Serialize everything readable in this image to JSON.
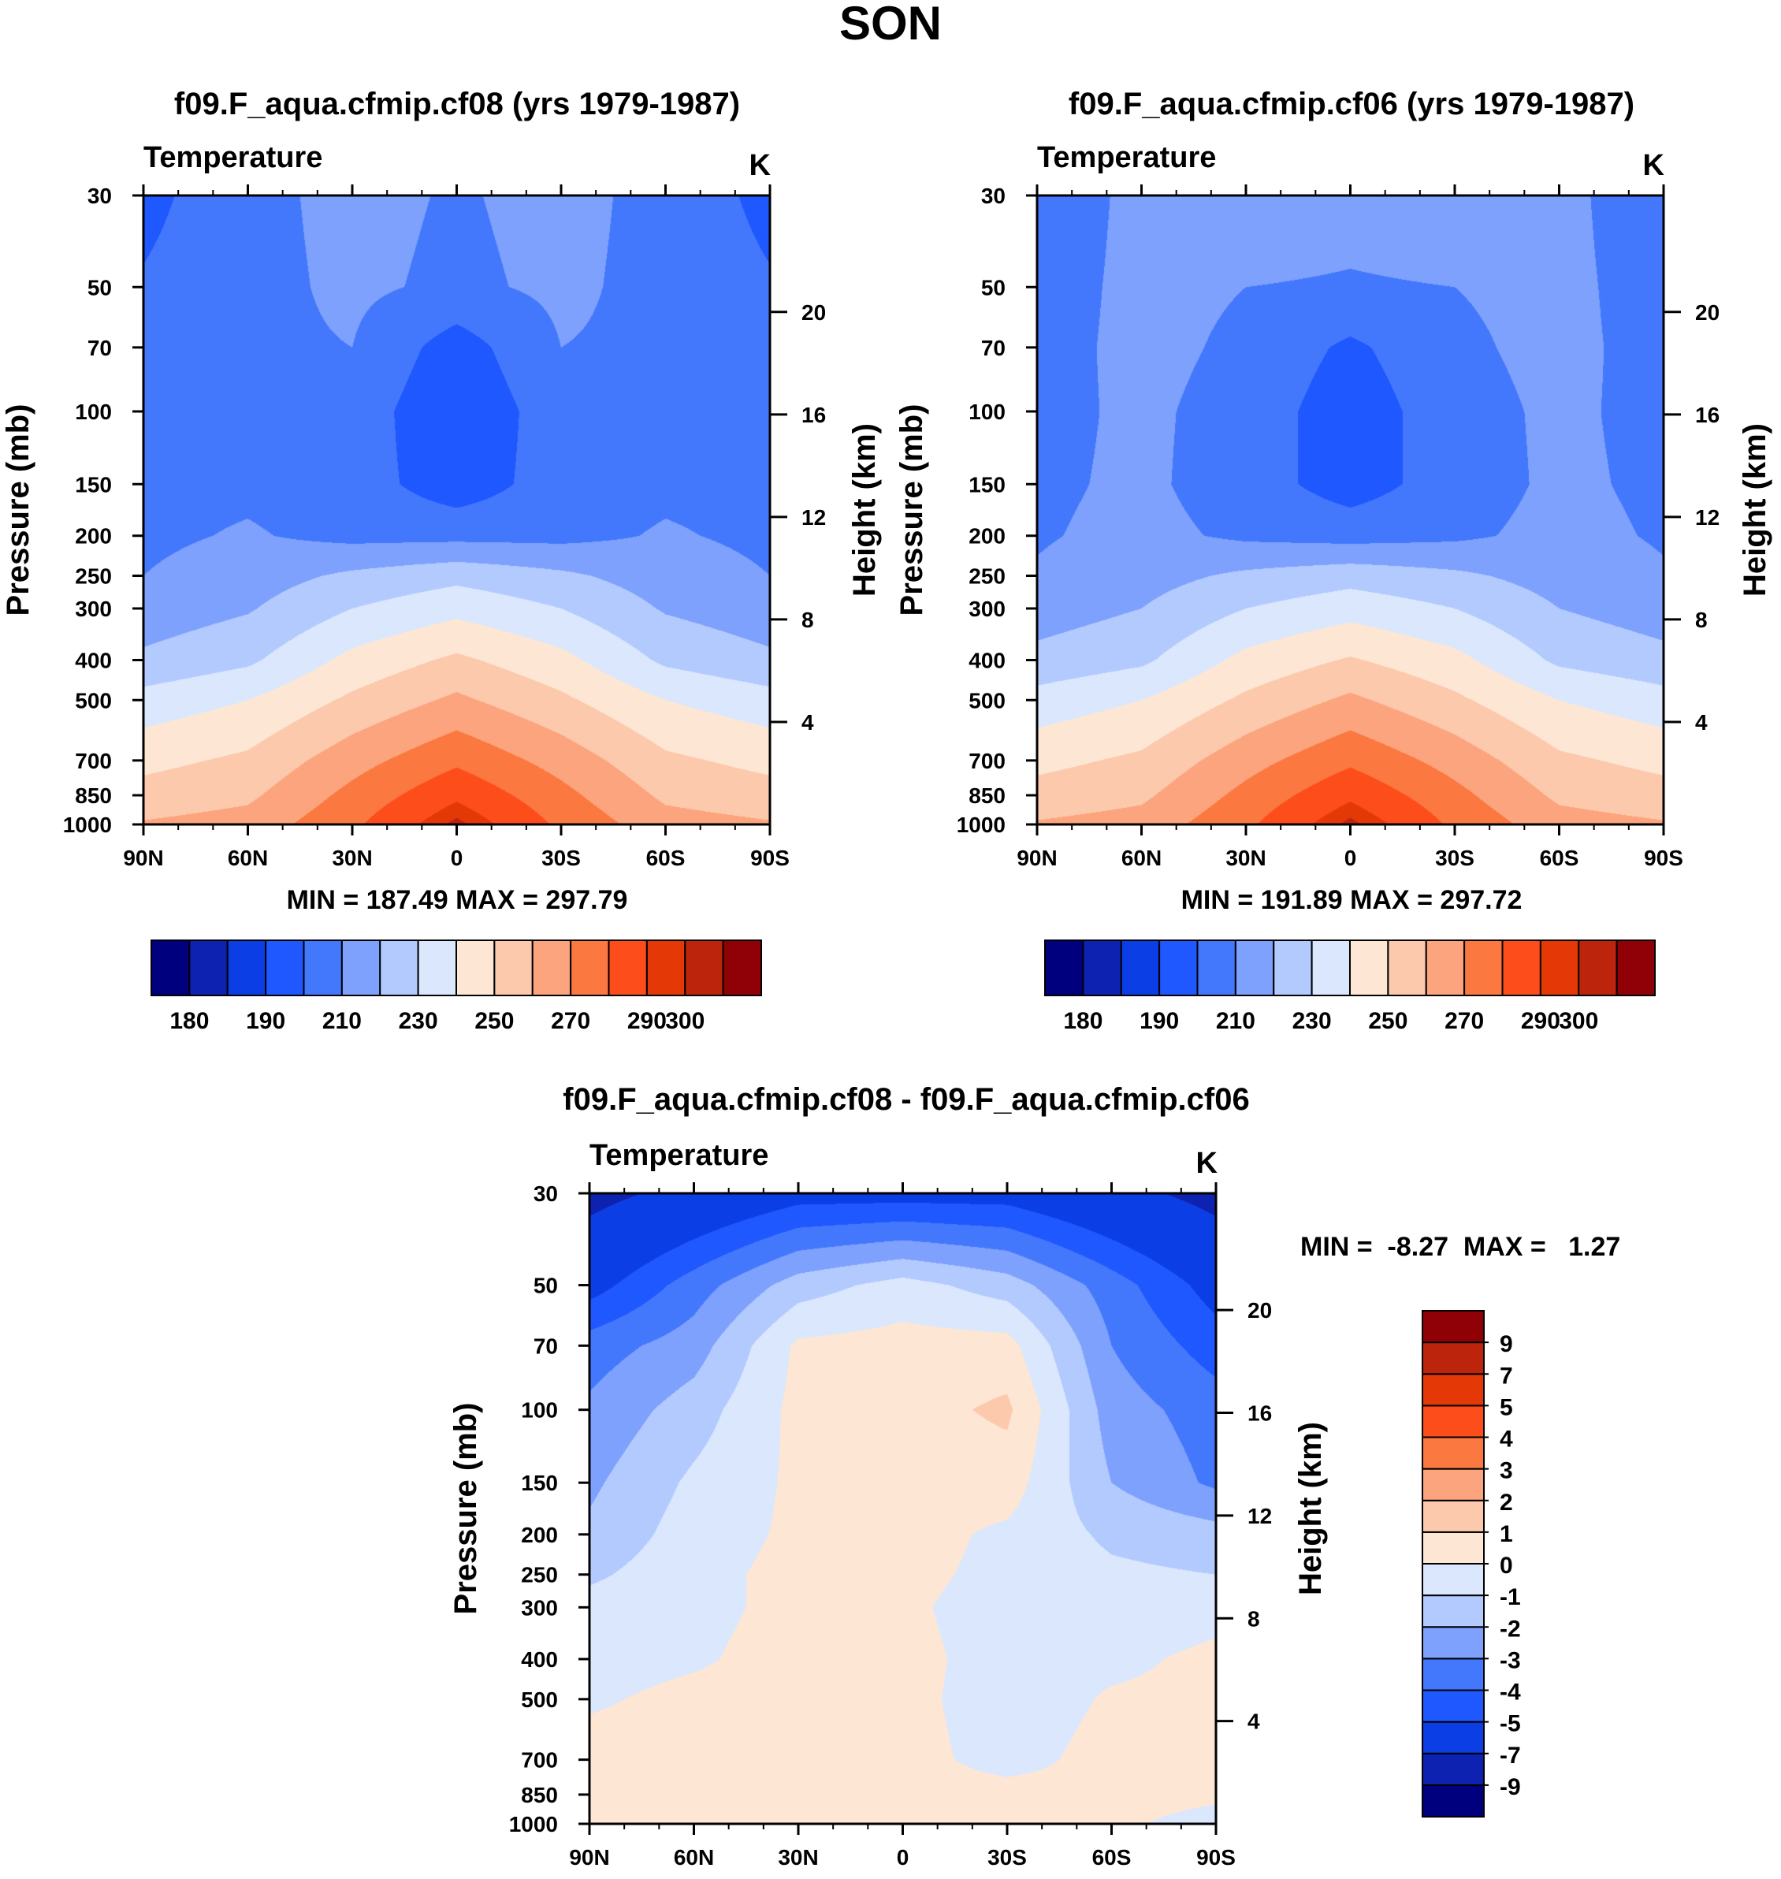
{
  "page": {
    "title": "SON",
    "colors": {
      "absolute": [
        "#00007f",
        "#0d22b0",
        "#0c3ee6",
        "#1f58ff",
        "#4478fc",
        "#7da1fc",
        "#b3caff",
        "#dae7fd",
        "#fde7d4",
        "#fcc9ac",
        "#fca47d",
        "#fb7840",
        "#fd4d1b",
        "#e43807",
        "#bc240c",
        "#8f0106"
      ],
      "difference": [
        "#00007f",
        "#0d22b0",
        "#0c3ee6",
        "#1f58ff",
        "#4478fc",
        "#7da1fc",
        "#b3caff",
        "#dae7fd",
        "#fde7d4",
        "#fcc9ac",
        "#fca47d",
        "#fb7840",
        "#fd4d1b",
        "#e43807",
        "#bc240c",
        "#8f0106"
      ]
    }
  },
  "chart_data": [
    {
      "type": "contour",
      "title": "f09.F_aqua.cfmip.cf08 (yrs 1979-1987)",
      "variable": "Temperature",
      "units": "K",
      "xlabel": "",
      "ylabel": "Pressure (mb)",
      "y2label": "Height (km)",
      "x_ticks": [
        "90N",
        "60N",
        "30N",
        "0",
        "30S",
        "60S",
        "90S"
      ],
      "x_range": [
        90,
        -90
      ],
      "y_ticks": [
        30,
        50,
        70,
        100,
        150,
        200,
        250,
        300,
        400,
        500,
        700,
        850,
        1000
      ],
      "y_range": [
        30,
        1000
      ],
      "height_ticks": [
        20,
        16,
        12,
        8,
        4
      ],
      "stats": "MIN = 187.49  MAX = 297.79",
      "min": 187.49,
      "max": 297.79,
      "colorbar_ticks": [
        180,
        190,
        210,
        230,
        250,
        270,
        290,
        300
      ],
      "levels": [
        180,
        185,
        190,
        200,
        210,
        220,
        230,
        240,
        250,
        260,
        270,
        280,
        290,
        295,
        300
      ],
      "field": {
        "x_points": [
          90,
          60,
          30,
          0,
          -30,
          -60,
          -90
        ],
        "levels_mb": [
          30,
          50,
          70,
          100,
          150,
          200,
          250,
          300,
          400,
          500,
          700,
          850,
          1000
        ],
        "values": [
          [
            197,
            207,
            213,
            209,
            213,
            207,
            197
          ],
          [
            201,
            207,
            212,
            208,
            212,
            207,
            201
          ],
          [
            204,
            208,
            210,
            195,
            210,
            208,
            204
          ],
          [
            205,
            208,
            206,
            191,
            206,
            208,
            205
          ],
          [
            207,
            208,
            205,
            194,
            205,
            208,
            207
          ],
          [
            208,
            211,
            207,
            207,
            207,
            211,
            208
          ],
          [
            210,
            215,
            222,
            227,
            222,
            215,
            210
          ],
          [
            214,
            219,
            230,
            237,
            230,
            219,
            214
          ],
          [
            222,
            228,
            243,
            252,
            243,
            228,
            222
          ],
          [
            234,
            240,
            252,
            262,
            252,
            240,
            234
          ],
          [
            247,
            252,
            266,
            278,
            266,
            252,
            247
          ],
          [
            254,
            258,
            273,
            288,
            273,
            258,
            254
          ],
          [
            261,
            264,
            278,
            297,
            278,
            264,
            261
          ]
        ]
      }
    },
    {
      "type": "contour",
      "title": "f09.F_aqua.cfmip.cf06 (yrs 1979-1987)",
      "variable": "Temperature",
      "units": "K",
      "xlabel": "",
      "ylabel": "Pressure (mb)",
      "y2label": "Height (km)",
      "x_ticks": [
        "90N",
        "60N",
        "30N",
        "0",
        "30S",
        "60S",
        "90S"
      ],
      "x_range": [
        90,
        -90
      ],
      "y_ticks": [
        30,
        50,
        70,
        100,
        150,
        200,
        250,
        300,
        400,
        500,
        700,
        850,
        1000
      ],
      "y_range": [
        30,
        1000
      ],
      "height_ticks": [
        20,
        16,
        12,
        8,
        4
      ],
      "stats": "MIN = 191.89  MAX = 297.72",
      "min": 191.89,
      "max": 297.72,
      "colorbar_ticks": [
        180,
        190,
        210,
        230,
        250,
        270,
        290,
        300
      ],
      "levels": [
        180,
        185,
        190,
        200,
        210,
        220,
        230,
        240,
        250,
        260,
        270,
        280,
        290,
        295,
        300
      ],
      "field": {
        "x_points": [
          90,
          60,
          30,
          0,
          -30,
          -60,
          -90
        ],
        "levels_mb": [
          30,
          50,
          70,
          100,
          150,
          200,
          250,
          300,
          400,
          500,
          700,
          850,
          1000
        ],
        "values": [
          [
            203,
            213,
            217,
            214,
            217,
            213,
            203
          ],
          [
            205,
            213,
            210,
            209,
            210,
            213,
            205
          ],
          [
            206,
            213,
            208,
            198,
            208,
            213,
            206
          ],
          [
            207,
            212,
            206,
            194,
            206,
            212,
            207
          ],
          [
            208,
            212,
            205,
            195,
            205,
            212,
            208
          ],
          [
            209,
            213,
            208,
            206,
            208,
            213,
            209
          ],
          [
            211,
            216,
            222,
            226,
            222,
            216,
            211
          ],
          [
            215,
            220,
            230,
            236,
            230,
            220,
            215
          ],
          [
            223,
            228,
            243,
            251,
            243,
            228,
            223
          ],
          [
            234,
            240,
            252,
            262,
            252,
            240,
            234
          ],
          [
            247,
            252,
            266,
            278,
            266,
            252,
            247
          ],
          [
            254,
            258,
            273,
            288,
            273,
            258,
            254
          ],
          [
            261,
            264,
            278,
            297,
            278,
            264,
            261
          ]
        ]
      }
    },
    {
      "type": "contour",
      "title": "f09.F_aqua.cfmip.cf08 - f09.F_aqua.cfmip.cf06",
      "variable": "Temperature",
      "units": "K",
      "xlabel": "",
      "ylabel": "Pressure (mb)",
      "y2label": "Height (km)",
      "x_ticks": [
        "90N",
        "60N",
        "30N",
        "0",
        "30S",
        "60S",
        "90S"
      ],
      "x_range": [
        90,
        -90
      ],
      "y_ticks": [
        30,
        50,
        70,
        100,
        150,
        200,
        250,
        300,
        400,
        500,
        700,
        850,
        1000
      ],
      "y_range": [
        30,
        1000
      ],
      "height_ticks": [
        20,
        16,
        12,
        8,
        4
      ],
      "stats": "MIN =  -8.27  MAX =   1.27",
      "min": -8.27,
      "max": 1.27,
      "colorbar_ticks": [
        9,
        7,
        5,
        4,
        3,
        2,
        1,
        0,
        -1,
        -2,
        -3,
        -4,
        -5,
        -7,
        -9
      ],
      "levels": [
        -9,
        -7,
        -5,
        -4,
        -3,
        -2,
        -1,
        0,
        1,
        2,
        3,
        4,
        5,
        7,
        9
      ],
      "field": {
        "x_points": [
          90,
          60,
          30,
          0,
          -30,
          -60,
          -90
        ],
        "levels_mb": [
          30,
          50,
          70,
          100,
          150,
          200,
          250,
          300,
          400,
          500,
          700,
          850,
          1000
        ],
        "values": [
          [
            -7.5,
            -6.5,
            -5.5,
            -5.5,
            -5.5,
            -6.5,
            -7.5
          ],
          [
            -5.5,
            -3.5,
            -1.5,
            -0.6,
            -1.5,
            -3.5,
            -5.5
          ],
          [
            -3.5,
            -2.5,
            0.2,
            0.4,
            0.4,
            -3.0,
            -4.5
          ],
          [
            -2.8,
            -1.5,
            0.3,
            0.6,
            1.2,
            -2.5,
            -3.5
          ],
          [
            -2.2,
            -0.8,
            0.2,
            0.4,
            0.5,
            -2.0,
            -3.2
          ],
          [
            -1.8,
            -0.5,
            0.2,
            0.4,
            -0.2,
            -1.2,
            -1.6
          ],
          [
            -1.2,
            -0.3,
            0.3,
            0.3,
            -0.3,
            -0.8,
            -1.0
          ],
          [
            -0.6,
            -0.2,
            0.2,
            0.2,
            -0.5,
            -0.5,
            -0.3
          ],
          [
            -0.3,
            -0.1,
            0.3,
            0.3,
            -0.4,
            -0.2,
            0.2
          ],
          [
            -0.1,
            0.2,
            0.3,
            0.3,
            -0.5,
            0.1,
            0.2
          ],
          [
            0.3,
            0.3,
            0.3,
            0.3,
            -0.3,
            0.3,
            0.3
          ],
          [
            0.3,
            0.3,
            0.3,
            0.3,
            0.3,
            0.2,
            0.1
          ],
          [
            0.2,
            0.3,
            0.2,
            0.3,
            0.3,
            0.1,
            -0.2
          ]
        ]
      }
    }
  ]
}
